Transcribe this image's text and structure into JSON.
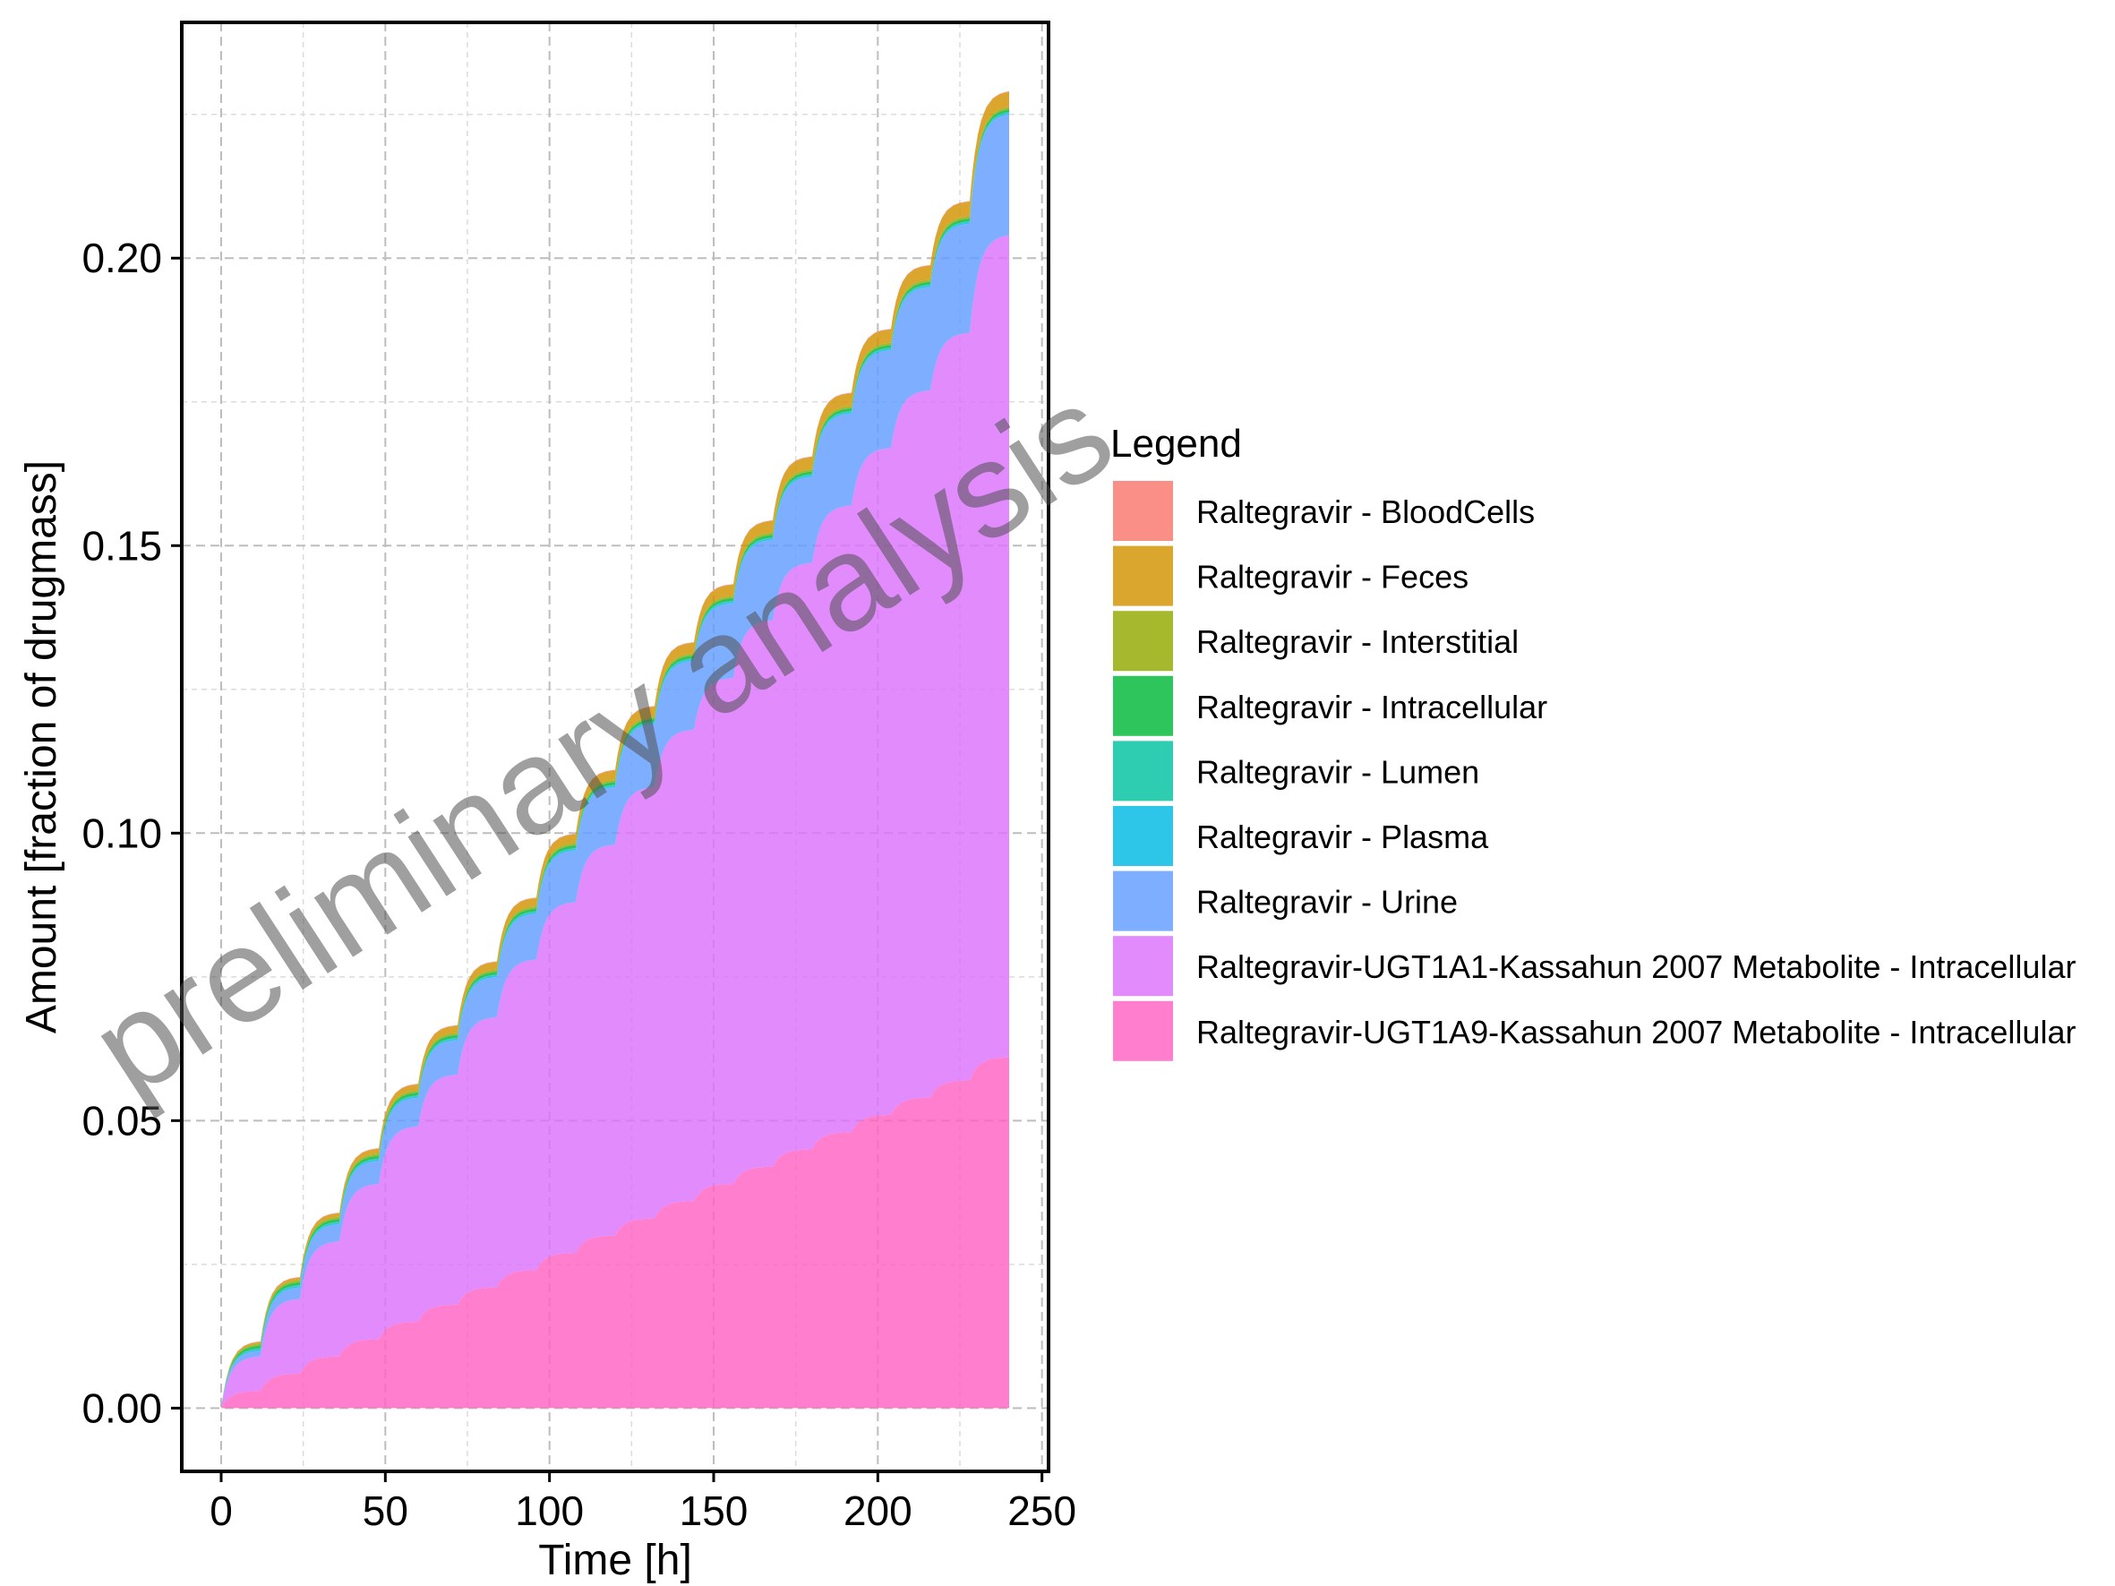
{
  "chart_data": {
    "type": "area",
    "stacked": true,
    "xlabel": "Time [h]",
    "ylabel": "Amount [fraction of drugmass]",
    "xlim": [
      -12,
      252
    ],
    "ylim": [
      -0.011,
      0.241
    ],
    "xticks": [
      0,
      50,
      100,
      150,
      200,
      250
    ],
    "xtick_labels": [
      "0",
      "50",
      "100",
      "150",
      "200",
      "250"
    ],
    "yticks": [
      0.0,
      0.05,
      0.1,
      0.15,
      0.2
    ],
    "ytick_labels": [
      "0.00",
      "0.05",
      "0.10",
      "0.15",
      "0.20"
    ],
    "grid": true,
    "legend_title": "Legend",
    "legend_position": "right",
    "watermark": "preliminary analysis",
    "dosing_interval_h": 12,
    "doses": 20,
    "x_end_h": 240,
    "series": [
      {
        "name": "Raltegravir - BloodCells",
        "color": "#F8766D",
        "dose_end_values": [
          0.0001,
          0.0001,
          0.0001,
          0.0001,
          0.0001,
          0.0001,
          0.0001,
          0.0001,
          0.0001,
          0.0001,
          0.0001,
          0.0001,
          0.0001,
          0.0001,
          0.0001,
          0.0001,
          0.0001,
          0.0001,
          0.0001,
          0.0001
        ]
      },
      {
        "name": "Raltegravir - Feces",
        "color": "#D39200",
        "dose_end_values": [
          0.0002,
          0.0004,
          0.0006,
          0.0008,
          0.001,
          0.0012,
          0.0013,
          0.0014,
          0.0015,
          0.0016,
          0.0017,
          0.0018,
          0.0019,
          0.002,
          0.0021,
          0.0022,
          0.0023,
          0.0024,
          0.0025,
          0.0026
        ]
      },
      {
        "name": "Raltegravir - Interstitial",
        "color": "#93AA00",
        "dose_end_values": [
          0.0004,
          0.0004,
          0.0004,
          0.0004,
          0.0004,
          0.0004,
          0.0004,
          0.0004,
          0.0004,
          0.0004,
          0.0004,
          0.0004,
          0.0004,
          0.0004,
          0.0004,
          0.0004,
          0.0004,
          0.0004,
          0.0004,
          0.0004
        ]
      },
      {
        "name": "Raltegravir - Intracellular",
        "color": "#00BA38",
        "dose_end_values": [
          0.0005,
          0.0005,
          0.0005,
          0.0005,
          0.0005,
          0.0005,
          0.0005,
          0.0005,
          0.0005,
          0.0005,
          0.0005,
          0.0005,
          0.0005,
          0.0005,
          0.0005,
          0.0005,
          0.0005,
          0.0005,
          0.0005,
          0.0005
        ]
      },
      {
        "name": "Raltegravir - Lumen",
        "color": "#00C19F",
        "dose_end_values": [
          0.0001,
          0.0001,
          0.0001,
          0.0001,
          0.0001,
          0.0001,
          0.0001,
          0.0001,
          0.0001,
          0.0001,
          0.0001,
          0.0001,
          0.0001,
          0.0001,
          0.0001,
          0.0001,
          0.0001,
          0.0001,
          0.0001,
          0.0001
        ]
      },
      {
        "name": "Raltegravir - Plasma",
        "color": "#00B9E3",
        "dose_end_values": [
          0.0003,
          0.0003,
          0.0003,
          0.0003,
          0.0003,
          0.0003,
          0.0003,
          0.0003,
          0.0003,
          0.0003,
          0.0003,
          0.0003,
          0.0003,
          0.0003,
          0.0003,
          0.0003,
          0.0003,
          0.0003,
          0.0003,
          0.0003
        ]
      },
      {
        "name": "Raltegravir - Urine",
        "color": "#619CFF",
        "dose_end_values": [
          0.001,
          0.002,
          0.003,
          0.004,
          0.005,
          0.006,
          0.007,
          0.008,
          0.009,
          0.01,
          0.011,
          0.012,
          0.013,
          0.014,
          0.015,
          0.016,
          0.017,
          0.018,
          0.019,
          0.021
        ]
      },
      {
        "name": "Raltegravir-UGT1A1-Kassahun 2007 Metabolite - Intracellular",
        "color": "#DB72FB",
        "dose_end_values": [
          0.006,
          0.013,
          0.02,
          0.027,
          0.034,
          0.04,
          0.047,
          0.054,
          0.061,
          0.068,
          0.075,
          0.082,
          0.088,
          0.095,
          0.102,
          0.109,
          0.116,
          0.123,
          0.13,
          0.143
        ]
      },
      {
        "name": "Raltegravir-UGT1A9-Kassahun 2007 Metabolite - Intracellular",
        "color": "#FF61C3",
        "dose_end_values": [
          0.003,
          0.006,
          0.009,
          0.012,
          0.015,
          0.018,
          0.021,
          0.024,
          0.027,
          0.03,
          0.033,
          0.036,
          0.039,
          0.042,
          0.045,
          0.048,
          0.051,
          0.054,
          0.057,
          0.061
        ]
      }
    ]
  }
}
